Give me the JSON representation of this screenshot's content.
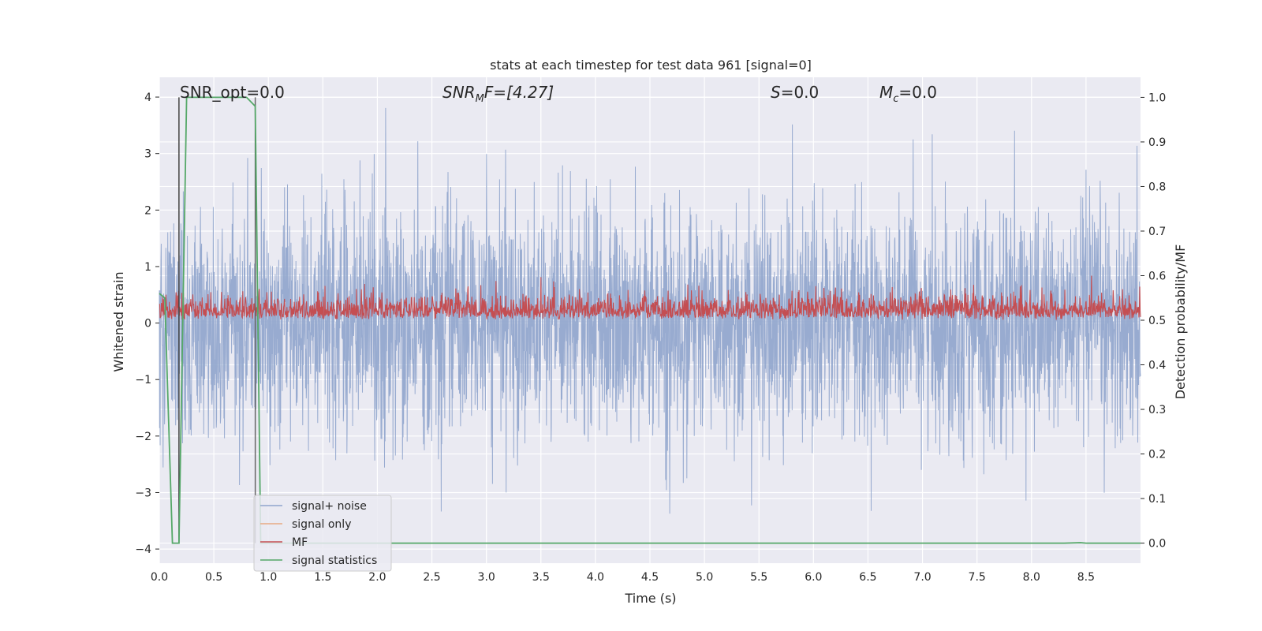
{
  "chart_data": {
    "type": "line",
    "title": "stats at each timestep for test data 961 [signal=0]",
    "xlabel": "Time (s)",
    "ylabel": "Whitened strain",
    "y2label": "Detection probability/MF",
    "xlim": [
      0.0,
      9.0
    ],
    "ylim": [
      -4.25,
      4.35
    ],
    "y2lim": [
      -0.045,
      1.045
    ],
    "xticks": [
      "0.0",
      "0.5",
      "1.0",
      "1.5",
      "2.0",
      "2.5",
      "3.0",
      "3.5",
      "4.0",
      "4.5",
      "5.0",
      "5.5",
      "6.0",
      "6.5",
      "7.0",
      "7.5",
      "8.0",
      "8.5"
    ],
    "yticks": [
      "4",
      "3",
      "2",
      "1",
      "0",
      "−1",
      "−2",
      "−3",
      "−4"
    ],
    "y2ticks": [
      "1.0",
      "0.9",
      "0.8",
      "0.7",
      "0.6",
      "0.5",
      "0.4",
      "0.3",
      "0.2",
      "0.1",
      "0.0"
    ],
    "grid": true,
    "legend_position": "lower-left",
    "annotations": {
      "snr_opt": "SNR_opt=0.0",
      "snr_mf_main": "SNR",
      "snr_mf_sub": "M",
      "snr_mf_rest": "F=[4.27]",
      "s_main": "S",
      "s_rest": "=0.0",
      "mc_main": "M",
      "mc_sub": "c",
      "mc_rest": "=0.0"
    },
    "series": [
      {
        "name": "signal+ noise",
        "color": "#8fa4cc",
        "description_values": "white noise, roughly spanning -3.5 to 4.0 in whitened strain",
        "envelope": {
          "min": -3.55,
          "max": 4.0,
          "core_min": -1.3,
          "core_max": 1.2
        }
      },
      {
        "name": "signal only",
        "color": "#e8a983",
        "values": []
      },
      {
        "name": "MF",
        "color": "#c44e52",
        "axis": "right",
        "envelope": {
          "min": 0.49,
          "max": 0.6
        }
      },
      {
        "name": "signal statistics",
        "color": "#55a868",
        "axis": "right",
        "x": [
          0.0,
          0.05,
          0.12,
          0.18,
          0.25,
          0.5,
          0.8,
          0.88,
          0.93,
          1.0,
          8.3,
          8.45,
          8.5,
          9.0
        ],
        "values": [
          0.56,
          0.55,
          0.0,
          0.0,
          1.0,
          1.0,
          1.0,
          0.98,
          0.0,
          0.0,
          0.0,
          0.001,
          0.0,
          0.0
        ]
      }
    ],
    "vlines": [
      {
        "x": 0.18,
        "color": "#444444"
      },
      {
        "x": 0.88,
        "color": "#666666"
      }
    ]
  }
}
